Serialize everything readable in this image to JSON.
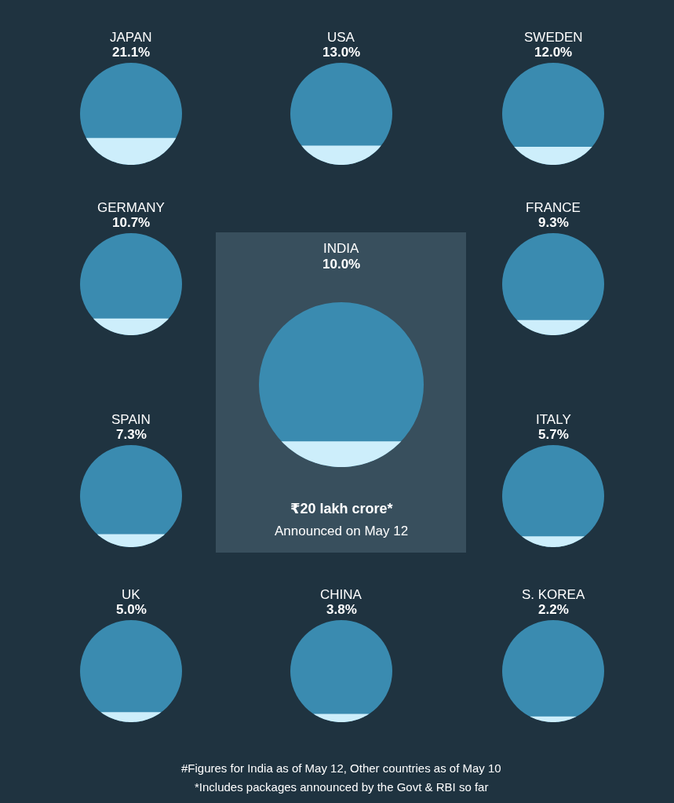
{
  "chart_data": {
    "type": "other",
    "categories": [
      "JAPAN",
      "USA",
      "SWEDEN",
      "GERMANY",
      "INDIA",
      "FRANCE",
      "SPAIN",
      "ITALY",
      "UK",
      "CHINA",
      "S. KOREA"
    ],
    "values": [
      21.1,
      13.0,
      12.0,
      10.7,
      10.0,
      9.3,
      7.3,
      5.7,
      5.0,
      3.8,
      2.2
    ],
    "value_labels": [
      "21.1%",
      "13.0%",
      "12.0%",
      "10.7%",
      "10.0%",
      "9.3%",
      "7.3%",
      "5.7%",
      "5.0%",
      "3.8%",
      "2.2%"
    ],
    "annotations": [
      "₹20 lakh crore*",
      "Announced on May 12",
      "#Figures for India as of May 12, Other countries as of May 10",
      "*Includes packages announced by the Govt & RBI so far"
    ]
  }
}
